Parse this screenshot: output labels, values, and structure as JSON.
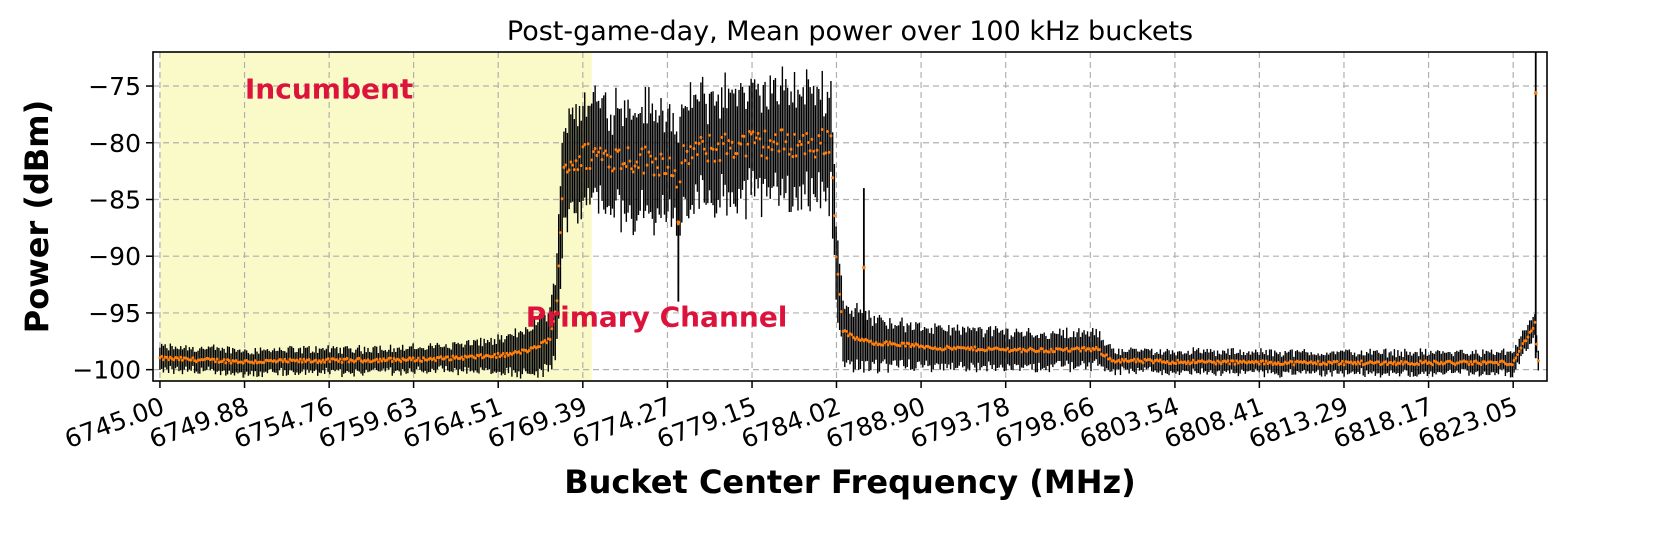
{
  "chart_data": {
    "type": "scatter",
    "title": "Post-game-day, Mean power over 100 kHz buckets",
    "xlabel": "Bucket Center Frequency (MHz)",
    "ylabel": "Power (dBm)",
    "xlim": [
      6744.6,
      6825.0
    ],
    "ylim": [
      -101,
      -72
    ],
    "grid": true,
    "error_bars": true,
    "x_ticks": [
      "6745.00",
      "6749.88",
      "6754.76",
      "6759.63",
      "6764.51",
      "6769.39",
      "6774.27",
      "6779.15",
      "6784.02",
      "6788.90",
      "6793.78",
      "6798.66",
      "6803.54",
      "6808.41",
      "6813.29",
      "6818.17",
      "6823.05"
    ],
    "x_tick_values": [
      6745.0,
      6749.88,
      6754.76,
      6759.63,
      6764.51,
      6769.39,
      6774.27,
      6779.15,
      6784.02,
      6788.9,
      6793.78,
      6798.66,
      6803.54,
      6808.41,
      6813.29,
      6818.17,
      6823.05
    ],
    "y_ticks": [
      "−75",
      "−80",
      "−85",
      "−90",
      "−95",
      "−100"
    ],
    "y_tick_values": [
      -75,
      -80,
      -85,
      -90,
      -95,
      -100
    ],
    "shaded_region": {
      "label": "Incumbent",
      "x": [
        6745.0,
        6769.9
      ],
      "color": "#fafac8"
    },
    "annotations": [
      {
        "text": "Incumbent",
        "x": 6749.9,
        "y": -75.2,
        "color": "#dc143c"
      },
      {
        "text": "Primary Channel",
        "x": 6766.1,
        "y": -95.3,
        "color": "#dc143c"
      }
    ],
    "series": [
      {
        "marker_color": "#ff7f0e",
        "errorbar_color": "#000000",
        "profile_x": [
          6745.0,
          6750.0,
          6755.0,
          6760.0,
          6763.0,
          6765.0,
          6766.5,
          6767.5,
          6767.9,
          6768.3,
          6770.0,
          6773.0,
          6774.6,
          6774.9,
          6775.2,
          6778.0,
          6781.0,
          6783.0,
          6783.7,
          6784.0,
          6784.4,
          6785.0,
          6786.0,
          6788.0,
          6790.0,
          6793.0,
          6796.0,
          6799.0,
          6800.0,
          6803.0,
          6810.0,
          6818.0,
          6823.0,
          6824.3,
          6824.5
        ],
        "profile_y": [
          -99.0,
          -99.3,
          -99.2,
          -99.1,
          -98.9,
          -98.7,
          -98.2,
          -97.3,
          -94.0,
          -82.0,
          -81.0,
          -81.5,
          -81.8,
          -86.5,
          -81.0,
          -80.2,
          -80.0,
          -80.2,
          -79.5,
          -90.0,
          -96.5,
          -97.2,
          -97.6,
          -97.8,
          -98.1,
          -98.2,
          -98.3,
          -98.2,
          -99.2,
          -99.3,
          -99.4,
          -99.4,
          -99.4,
          -96.0,
          -99.4
        ],
        "spread_x": [
          6745.0,
          6760.0,
          6765.0,
          6767.5,
          6768.3,
          6783.7,
          6784.4,
          6788.0,
          6799.0,
          6800.0,
          6824.5
        ],
        "spread_y": [
          1.0,
          1.0,
          1.4,
          2.6,
          4.5,
          4.5,
          2.6,
          1.7,
          1.4,
          0.9,
          0.9
        ],
        "spikes": [
          {
            "x": 6785.6,
            "low": -97.5,
            "high": -84.0,
            "mean": -91.0
          },
          {
            "x": 6774.9,
            "low": -94.0,
            "high": -80.0,
            "mean": -87.0
          },
          {
            "x": 6824.35,
            "low": -99.0,
            "high": -72.0,
            "mean": -75.6
          }
        ]
      }
    ]
  }
}
